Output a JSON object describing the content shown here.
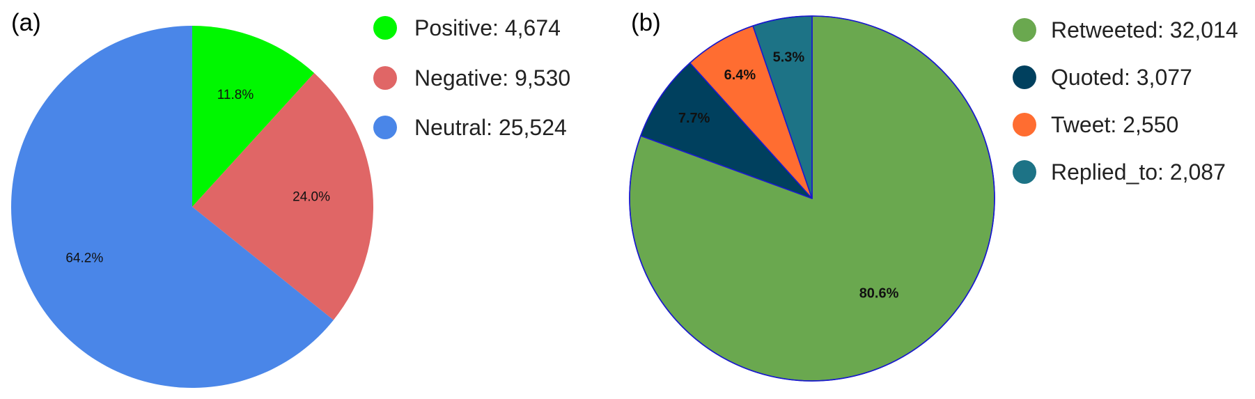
{
  "chart_data": [
    {
      "type": "pie",
      "panel_label": "(a)",
      "title": "",
      "legend_position": "right",
      "slices": [
        {
          "label": "Positive: 4,674",
          "value": 4674,
          "percent_label": "11.8%",
          "color": "#00f700"
        },
        {
          "label": "Negative: 9,530",
          "value": 9530,
          "percent_label": "24.0%",
          "color": "#e06666"
        },
        {
          "label": "Neutral: 25,524",
          "value": 25524,
          "percent_label": "64.2%",
          "color": "#4a86e8"
        }
      ]
    },
    {
      "type": "pie",
      "panel_label": "(b)",
      "title": "",
      "legend_position": "right",
      "slices": [
        {
          "label": "Retweeted: 32,014",
          "value": 32014,
          "percent_label": "80.6%",
          "color": "#6aa84f"
        },
        {
          "label": "Quoted: 3,077",
          "value": 3077,
          "percent_label": "7.7%",
          "color": "#00405e"
        },
        {
          "label": "Tweet: 2,550",
          "value": 2550,
          "percent_label": "6.4%",
          "color": "#ff6d31"
        },
        {
          "label": "Replied_to: 2,087",
          "value": 2087,
          "percent_label": "5.3%",
          "color": "#1d7386"
        }
      ]
    }
  ]
}
